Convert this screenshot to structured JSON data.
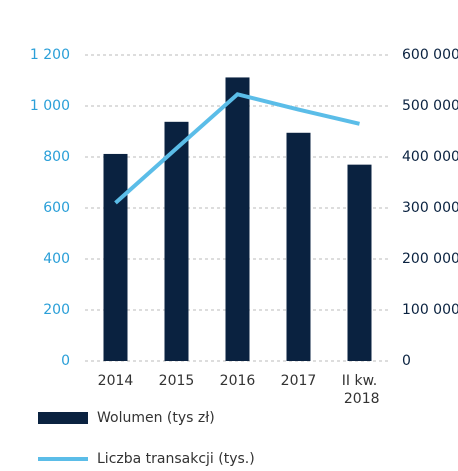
{
  "chart_data": {
    "type": "bar",
    "categories": [
      "2014",
      "2015",
      "2016",
      "2017",
      "II kw. 2018"
    ],
    "series": [
      {
        "name": "Wolumen (tys zł)",
        "color": "#0a2240",
        "type": "bar",
        "values": [
          812,
          938,
          1112,
          895,
          770
        ]
      },
      {
        "name": "Liczba transakcji (tys.)",
        "color": "#5bbde8",
        "type": "line",
        "axis": "y2",
        "values": [
          310000,
          417000,
          523000,
          493000,
          465000
        ]
      }
    ],
    "ylim": [
      0,
      1200
    ],
    "yticks": [
      0,
      200,
      400,
      600,
      800,
      {
        "value": 1000,
        "label": "1 000"
      },
      {
        "value": 1200,
        "label": "1 200"
      }
    ],
    "y2lim": [
      0,
      600000
    ],
    "y2ticks": [
      0,
      {
        "value": 100000,
        "label": "100 000"
      },
      {
        "value": 200000,
        "label": "200 000"
      },
      {
        "value": 300000,
        "label": "300 000"
      },
      {
        "value": 400000,
        "label": "400 000"
      },
      {
        "value": 500000,
        "label": "500 000"
      },
      {
        "value": 600000,
        "label": "600 000"
      }
    ],
    "grid": true
  }
}
